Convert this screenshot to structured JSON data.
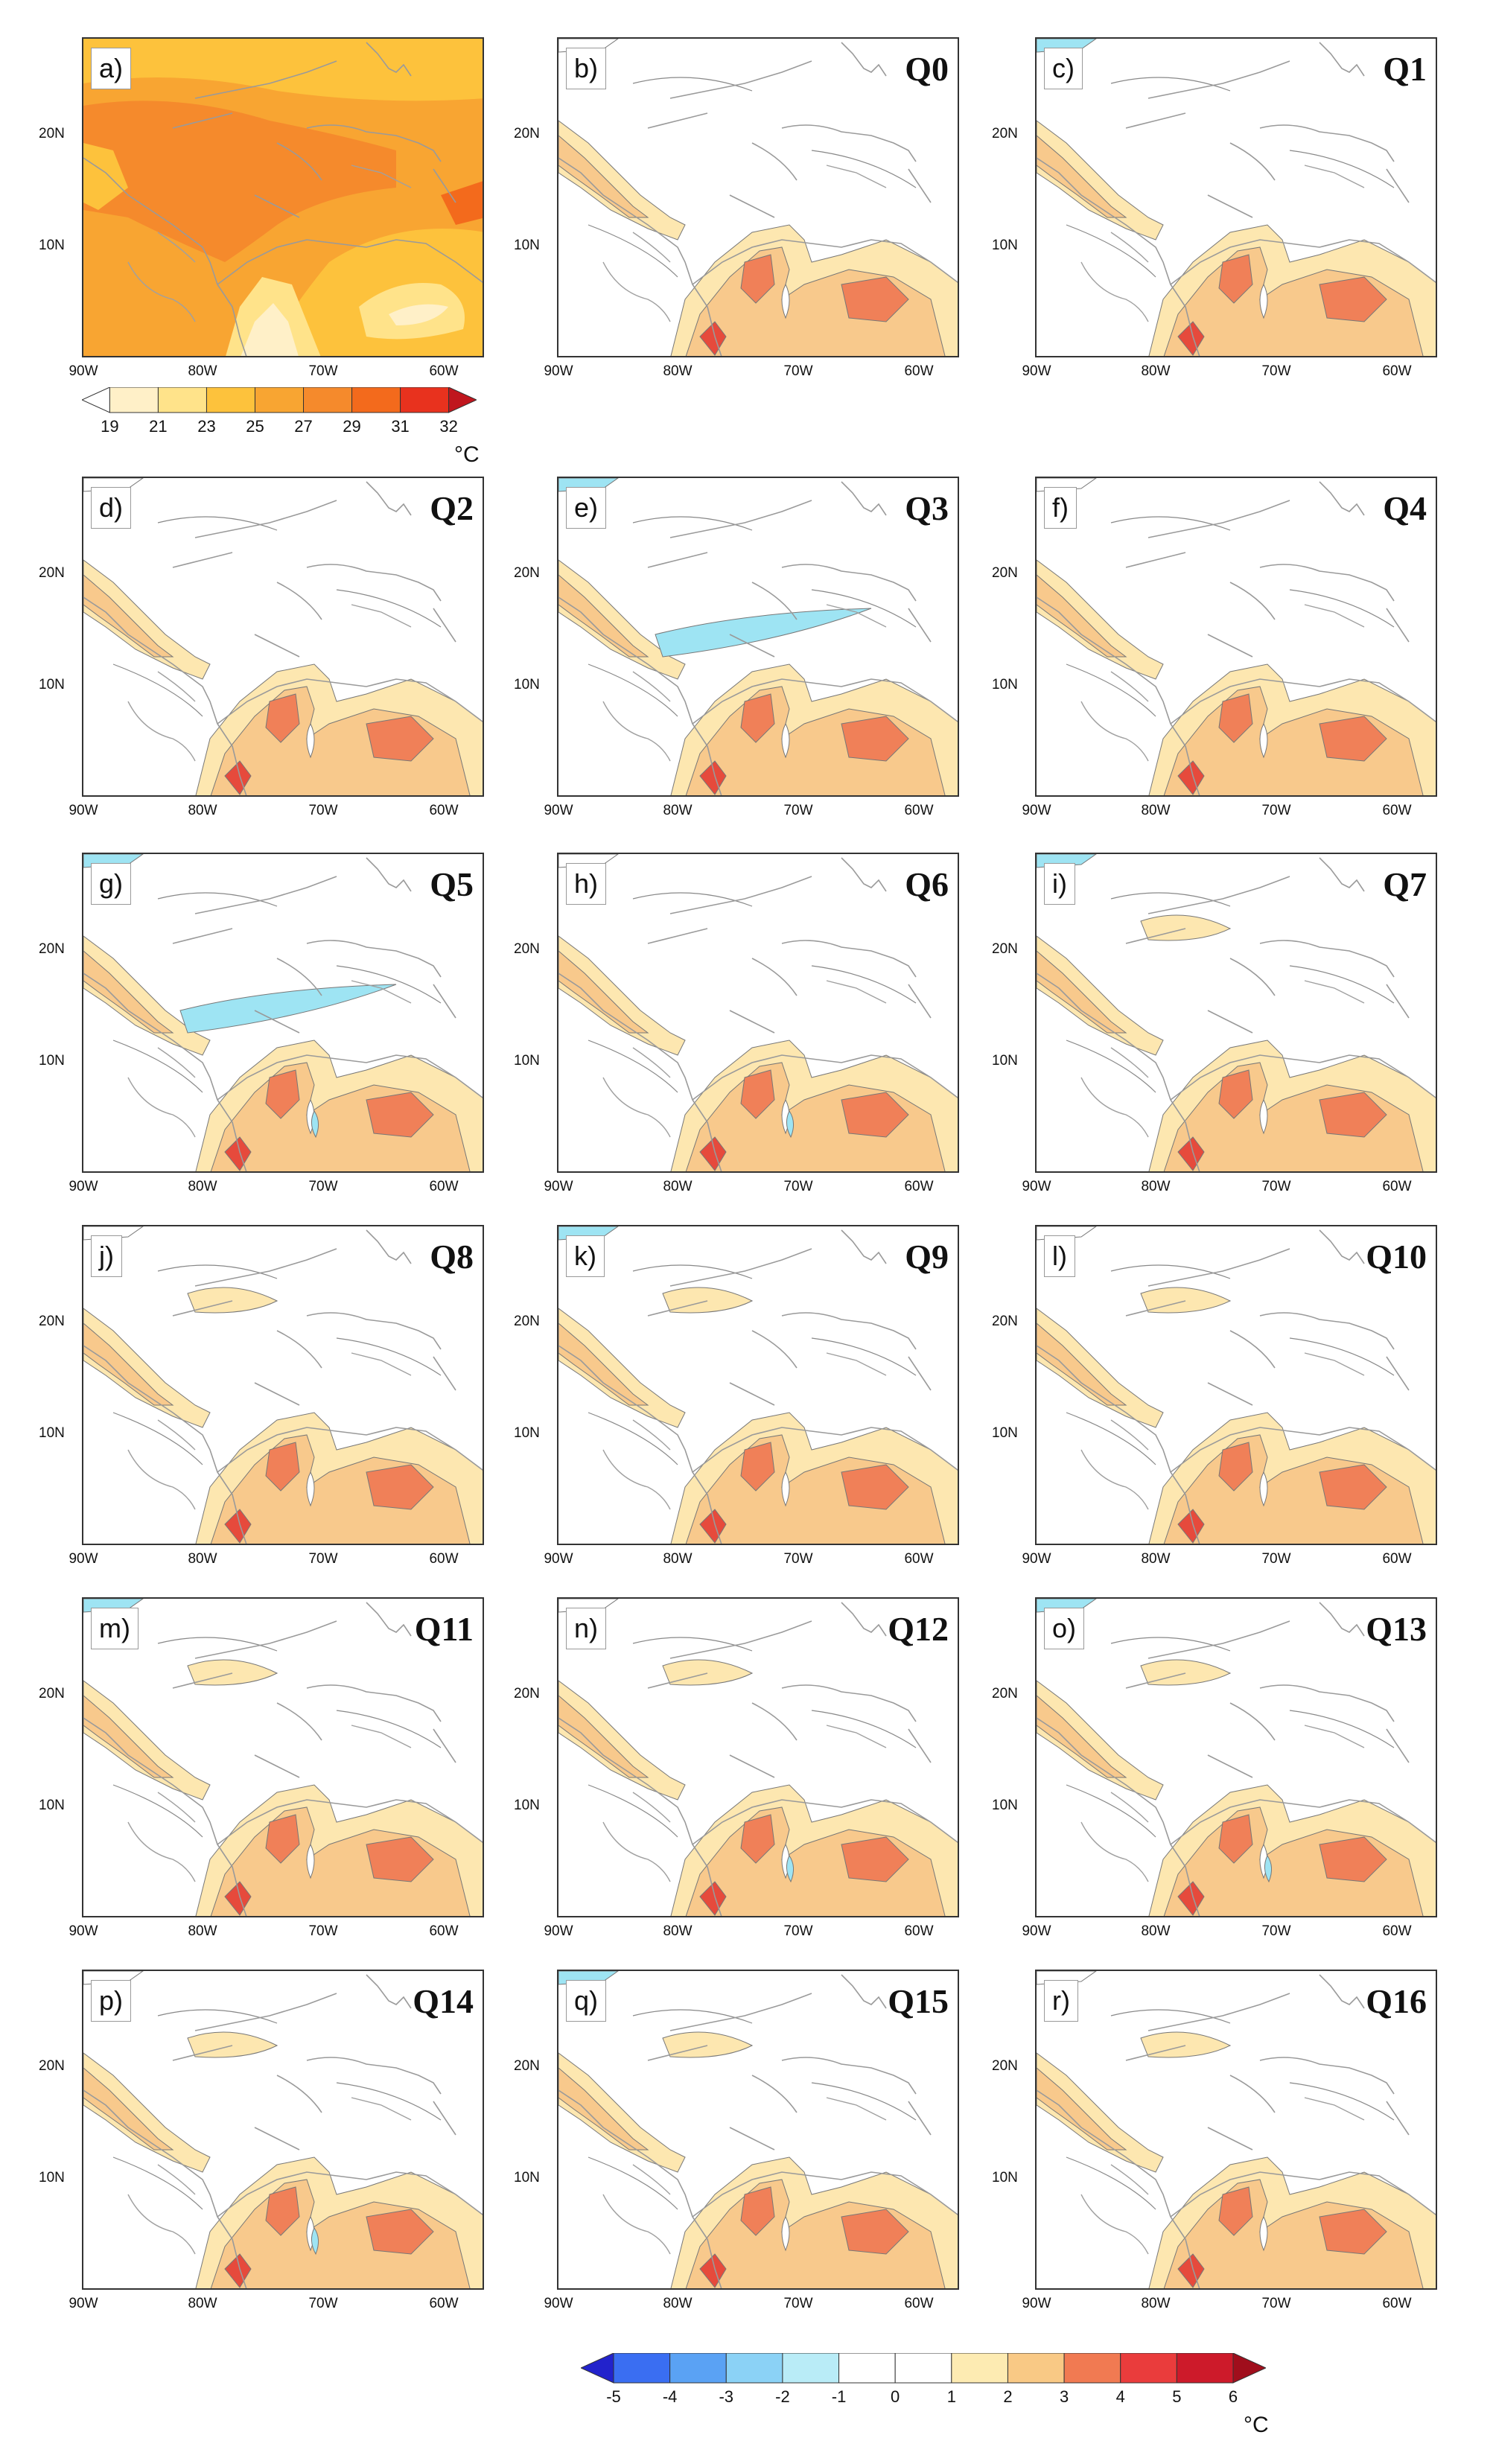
{
  "panels": [
    {
      "label": "a)",
      "title": "",
      "kind": "abs"
    },
    {
      "label": "b)",
      "title": "Q0",
      "kind": "anom"
    },
    {
      "label": "c)",
      "title": "Q1",
      "kind": "anom"
    },
    {
      "label": "d)",
      "title": "Q2",
      "kind": "anom"
    },
    {
      "label": "e)",
      "title": "Q3",
      "kind": "anom"
    },
    {
      "label": "f)",
      "title": "Q4",
      "kind": "anom"
    },
    {
      "label": "g)",
      "title": "Q5",
      "kind": "anom"
    },
    {
      "label": "h)",
      "title": "Q6",
      "kind": "anom"
    },
    {
      "label": "i)",
      "title": "Q7",
      "kind": "anom"
    },
    {
      "label": "j)",
      "title": "Q8",
      "kind": "anom"
    },
    {
      "label": "k)",
      "title": "Q9",
      "kind": "anom"
    },
    {
      "label": "l)",
      "title": "Q10",
      "kind": "anom"
    },
    {
      "label": "m)",
      "title": "Q11",
      "kind": "anom"
    },
    {
      "label": "n)",
      "title": "Q12",
      "kind": "anom"
    },
    {
      "label": "o)",
      "title": "Q13",
      "kind": "anom"
    },
    {
      "label": "p)",
      "title": "Q14",
      "kind": "anom"
    },
    {
      "label": "q)",
      "title": "Q15",
      "kind": "anom"
    },
    {
      "label": "r)",
      "title": "Q16",
      "kind": "anom"
    }
  ],
  "axes": {
    "x_ticks": [
      "90W",
      "80W",
      "70W",
      "60W"
    ],
    "y_ticks": [
      "20N",
      "10N"
    ]
  },
  "colorbar_abs": {
    "labels": [
      "19",
      "21",
      "23",
      "25",
      "27",
      "29",
      "31",
      "32"
    ],
    "colors": [
      "#ffffff",
      "#fff0c8",
      "#ffe38a",
      "#fdc23c",
      "#f8a532",
      "#f58a2c",
      "#f36a1c",
      "#e8321e",
      "#c0161e"
    ],
    "unit": "°C"
  },
  "colorbar_anom": {
    "labels": [
      "-5",
      "-4",
      "-3",
      "-2",
      "-1",
      "0",
      "1",
      "2",
      "3",
      "4",
      "5",
      "6"
    ],
    "colors": [
      "#2222cc",
      "#3a6ef2",
      "#5aa2f4",
      "#8bd2f6",
      "#b9ecf7",
      "#ffffff",
      "#ffffff",
      "#fdebb2",
      "#f9c985",
      "#f17a52",
      "#ea3c3c",
      "#cd1a2a",
      "#a00e1c"
    ],
    "unit": "°C"
  },
  "colors": {
    "land_outline": "#8a8a8a",
    "neg_light": "#9ee4f3",
    "pos_1": "#fde7b0",
    "pos_2": "#f8c98c",
    "pos_3": "#f08058",
    "pos_4": "#e64a3c"
  }
}
